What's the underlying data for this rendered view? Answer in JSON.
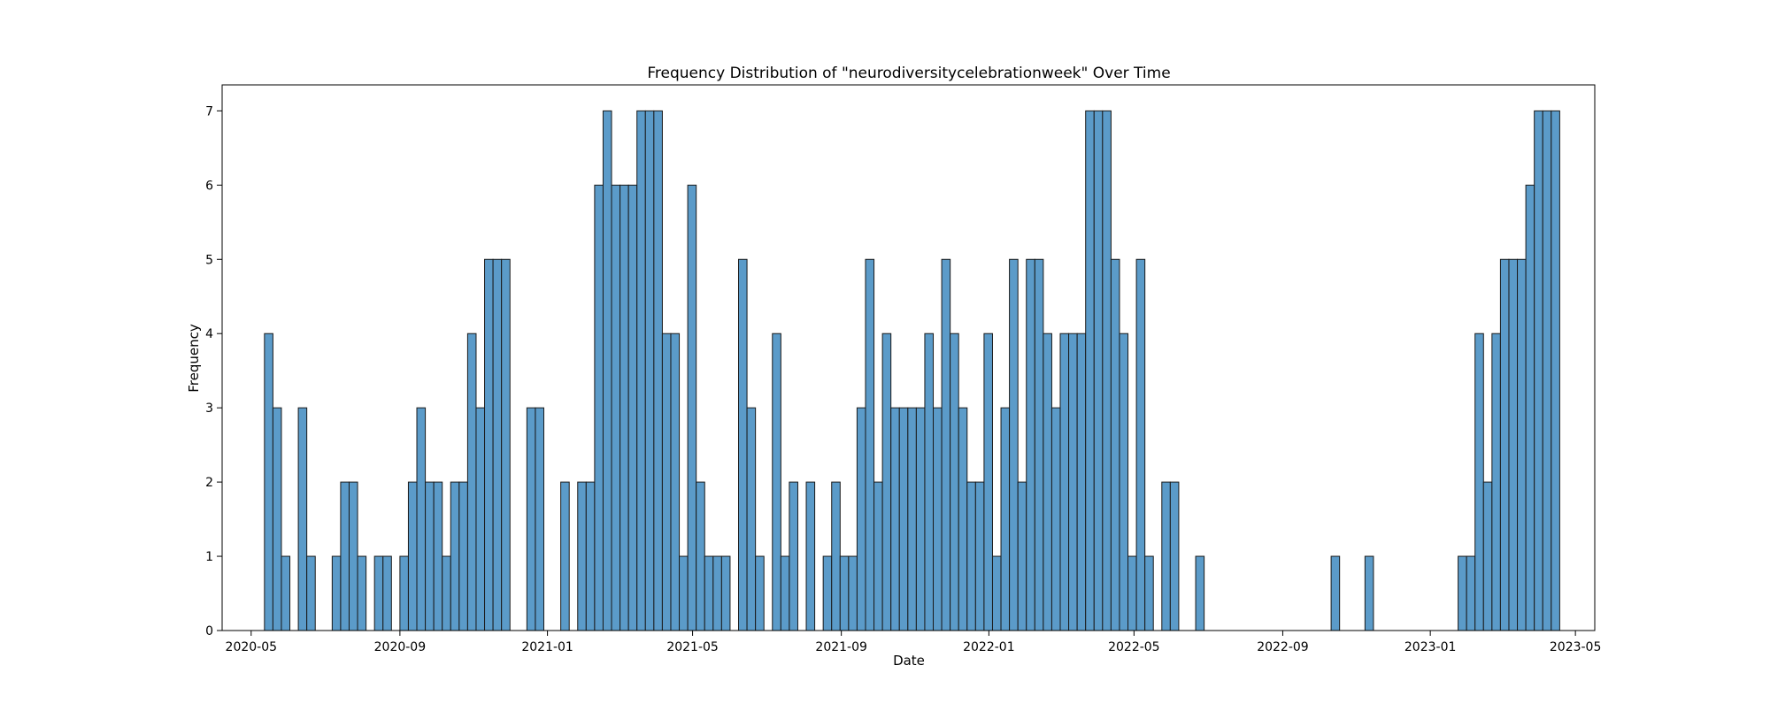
{
  "chart_data": {
    "type": "bar",
    "title": "Frequency Distribution of \"neurodiversitycelebrationweek\" Over Time",
    "xlabel": "Date",
    "ylabel": "Frequency",
    "ylim": [
      0,
      7.35
    ],
    "yticks": [
      0,
      1,
      2,
      3,
      4,
      5,
      6,
      7
    ],
    "xlim": [
      "2020-04-07",
      "2023-05-17"
    ],
    "xticks": [
      {
        "label": "2020-05",
        "date": "2020-05-01"
      },
      {
        "label": "2020-09",
        "date": "2020-09-01"
      },
      {
        "label": "2021-01",
        "date": "2021-01-01"
      },
      {
        "label": "2021-05",
        "date": "2021-05-01"
      },
      {
        "label": "2021-09",
        "date": "2021-09-01"
      },
      {
        "label": "2022-01",
        "date": "2022-01-01"
      },
      {
        "label": "2022-05",
        "date": "2022-05-01"
      },
      {
        "label": "2022-09",
        "date": "2022-09-01"
      },
      {
        "label": "2023-01",
        "date": "2023-01-01"
      },
      {
        "label": "2023-05",
        "date": "2023-05-01"
      }
    ],
    "bins": {
      "start": "2020-05-12",
      "bin_width_days": 7
    },
    "values": [
      4,
      3,
      1,
      0,
      3,
      1,
      0,
      0,
      1,
      2,
      2,
      1,
      0,
      1,
      1,
      0,
      1,
      2,
      3,
      2,
      2,
      1,
      2,
      2,
      4,
      3,
      5,
      5,
      5,
      0,
      0,
      3,
      3,
      0,
      0,
      2,
      0,
      2,
      2,
      6,
      7,
      6,
      6,
      6,
      7,
      7,
      7,
      4,
      4,
      1,
      6,
      2,
      1,
      1,
      1,
      0,
      5,
      3,
      1,
      0,
      4,
      1,
      2,
      0,
      2,
      0,
      1,
      2,
      1,
      1,
      3,
      5,
      2,
      4,
      3,
      3,
      3,
      3,
      4,
      3,
      5,
      4,
      3,
      2,
      2,
      4,
      1,
      3,
      5,
      2,
      5,
      5,
      4,
      3,
      4,
      4,
      4,
      7,
      7,
      7,
      5,
      4,
      1,
      5,
      1,
      0,
      2,
      2,
      0,
      0,
      1,
      0,
      0,
      0,
      0,
      0,
      0,
      0,
      0,
      0,
      0,
      0,
      0,
      0,
      0,
      0,
      1,
      0,
      0,
      0,
      1,
      0,
      0,
      0,
      0,
      0,
      0,
      0,
      0,
      0,
      0,
      1,
      1,
      4,
      2,
      4,
      5,
      5,
      5,
      6,
      7,
      7,
      7
    ],
    "bar_color": "#5b9bc9",
    "edge_color": "#1a1a1a",
    "grid": false,
    "legend": "none"
  }
}
